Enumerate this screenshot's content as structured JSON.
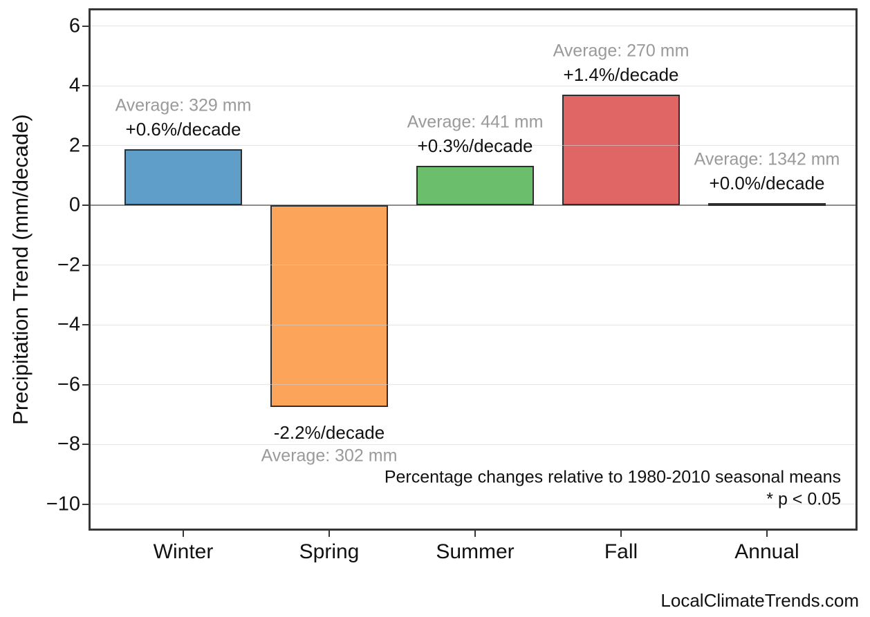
{
  "watermark": "LocalClimateTrends.com",
  "chart_data": {
    "type": "bar",
    "title": "",
    "xlabel": "",
    "ylabel": "Precipitation Trend (mm/decade)",
    "categories": [
      "Winter",
      "Spring",
      "Summer",
      "Fall",
      "Annual"
    ],
    "values": [
      1.87,
      -6.75,
      1.32,
      3.7,
      0.08
    ],
    "bar_colors": [
      "#5F9EC9",
      "#FCA45A",
      "#6BBE6C",
      "#E06666",
      "#7C60A5"
    ],
    "bar_edge_color": "#2E2E2E",
    "annotations": [
      {
        "average": "Average: 329 mm",
        "trend": "+0.6%/decade"
      },
      {
        "average": "Average: 302 mm",
        "trend": "-2.2%/decade"
      },
      {
        "average": "Average: 441 mm",
        "trend": "+0.3%/decade"
      },
      {
        "average": "Average: 270 mm",
        "trend": "+1.4%/decade"
      },
      {
        "average": "Average: 1342 mm",
        "trend": "+0.0%/decade"
      }
    ],
    "ytick_values": [
      6,
      4,
      2,
      0,
      -2,
      -4,
      -6,
      -8,
      -10
    ],
    "ytick_labels": [
      "6",
      "4",
      "2",
      "0",
      "−2",
      "−4",
      "−6",
      "−8",
      "−10"
    ],
    "ylim": [
      -10.89,
      6.59
    ],
    "grid": "horizontal",
    "zero_line": true,
    "legend": "none",
    "annotation_note": "Percentage changes relative to 1980-2010 seasonal means",
    "significance_note": "* p < 0.05",
    "text_colors": {
      "average": "#9A9A9A",
      "trend": "#111111"
    }
  }
}
